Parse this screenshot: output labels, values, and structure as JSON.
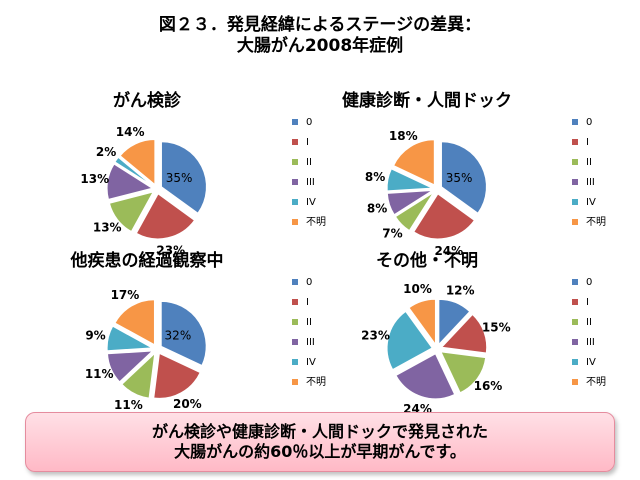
{
  "title": {
    "line1": "図２３．発見経緯によるステージの差異：",
    "line2": "大腸がん2008年症例"
  },
  "colors": [
    "#4f81bd",
    "#c0504d",
    "#9bbb59",
    "#8064a2",
    "#4bacc6",
    "#f79646"
  ],
  "chart_data": [
    {
      "type": "pie",
      "title": "がん検診",
      "categories": [
        "0",
        "I",
        "II",
        "III",
        "IV",
        "不明"
      ],
      "values": [
        35,
        23,
        13,
        13,
        2,
        14
      ],
      "labels": [
        "35%",
        "23%",
        "13%",
        "13%",
        "2%",
        "14%"
      ],
      "legend": "right"
    },
    {
      "type": "pie",
      "title": "健康診断・人間ドック",
      "categories": [
        "0",
        "I",
        "II",
        "III",
        "IV",
        "不明"
      ],
      "values": [
        35,
        24,
        7,
        8,
        8,
        18
      ],
      "labels": [
        "35%",
        "24%",
        "7%",
        "8%",
        "8%",
        "18%"
      ],
      "legend": "right"
    },
    {
      "type": "pie",
      "title": "他疾患の経過観察中",
      "categories": [
        "0",
        "I",
        "II",
        "III",
        "IV",
        "不明"
      ],
      "values": [
        32,
        20,
        11,
        11,
        9,
        17
      ],
      "labels": [
        "32%",
        "20%",
        "11%",
        "11%",
        "9%",
        "17%"
      ],
      "legend": "right"
    },
    {
      "type": "pie",
      "title": "その他・不明",
      "categories": [
        "0",
        "I",
        "II",
        "III",
        "IV",
        "不明"
      ],
      "values": [
        12,
        15,
        16,
        24,
        23,
        10
      ],
      "labels": [
        "12%",
        "15%",
        "16%",
        "24%",
        "23%",
        "10%"
      ],
      "legend": "right"
    }
  ],
  "callout": {
    "line1": "がん検診や健康診断・人間ドックで発見された",
    "line2": "大腸がんの約60％以上が早期がんです。"
  }
}
